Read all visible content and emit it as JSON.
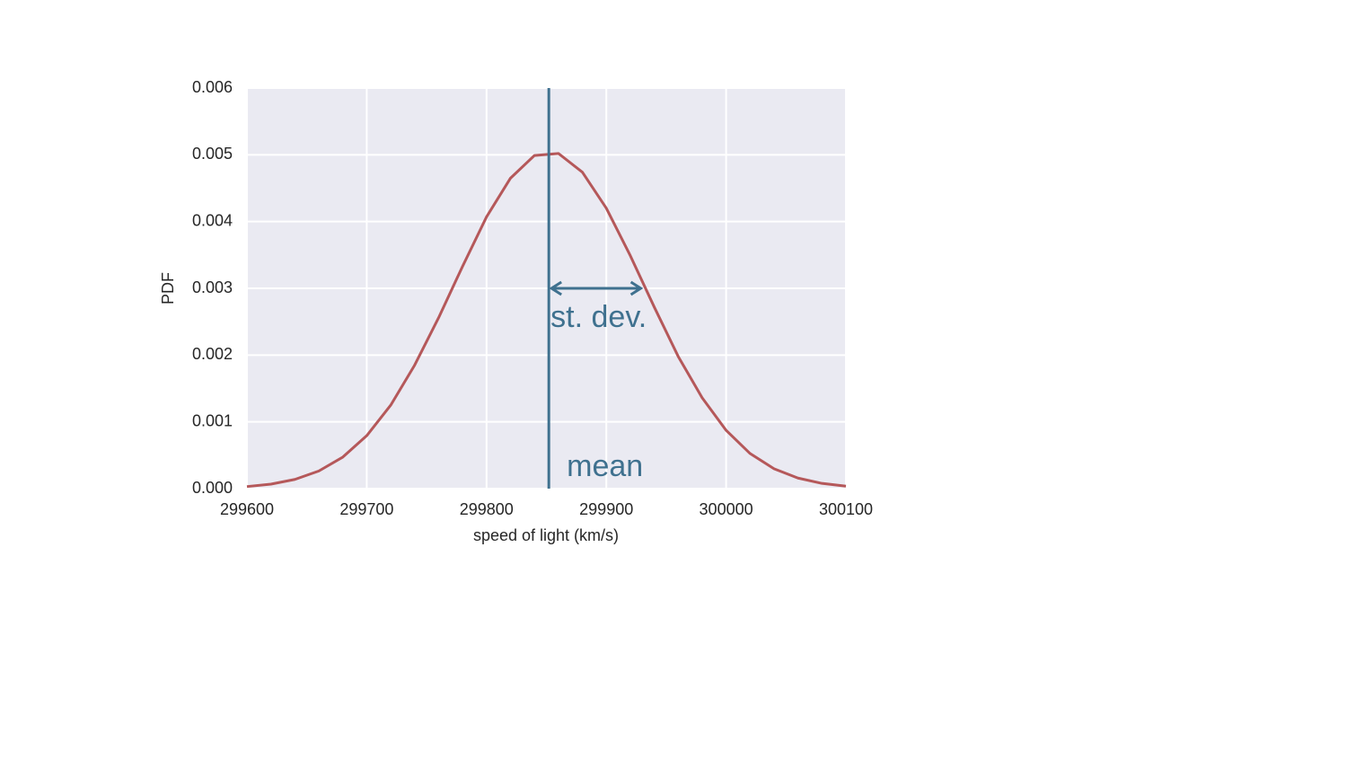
{
  "chart_data": {
    "type": "line",
    "xlabel": "speed of light (km/s)",
    "ylabel": "PDF",
    "x": [
      299600,
      299620,
      299640,
      299660,
      299680,
      299700,
      299720,
      299740,
      299760,
      299780,
      299800,
      299820,
      299840,
      299860,
      299880,
      299900,
      299920,
      299940,
      299960,
      299980,
      300000,
      300020,
      300040,
      300060,
      300080,
      300100
    ],
    "series": [
      {
        "color": "#b5585a",
        "values": [
          3.12e-05,
          6.77e-05,
          0.000138,
          0.000264,
          0.000472,
          0.000793,
          0.00125,
          0.00185,
          0.00256,
          0.00333,
          0.00407,
          0.00465,
          0.00499,
          0.00502,
          0.00474,
          0.0042,
          0.00349,
          0.00272,
          0.00198,
          0.00136,
          0.000873,
          0.000526,
          0.000298,
          0.000158,
          7.84e-05,
          3.66e-05
        ]
      }
    ],
    "xlim": [
      299600,
      300100
    ],
    "xticks": [
      299600,
      299700,
      299800,
      299900,
      300000,
      300100
    ],
    "ylim": [
      0,
      0.006
    ],
    "yticks": [
      {
        "value": 0,
        "label": "0.000"
      },
      {
        "value": 0.001,
        "label": "0.001"
      },
      {
        "value": 0.002,
        "label": "0.002"
      },
      {
        "value": 0.003,
        "label": "0.003"
      },
      {
        "value": 0.004,
        "label": "0.004"
      },
      {
        "value": 0.005,
        "label": "0.005"
      },
      {
        "value": 0.006,
        "label": "0.006"
      }
    ],
    "grid": true,
    "annotations": {
      "color": "#3f718f",
      "mean_line": {
        "x": 299852,
        "label": "mean"
      },
      "sd_arrow": {
        "x": [
          299852,
          299931
        ],
        "y": 0.003,
        "label": "st. dev."
      }
    }
  }
}
